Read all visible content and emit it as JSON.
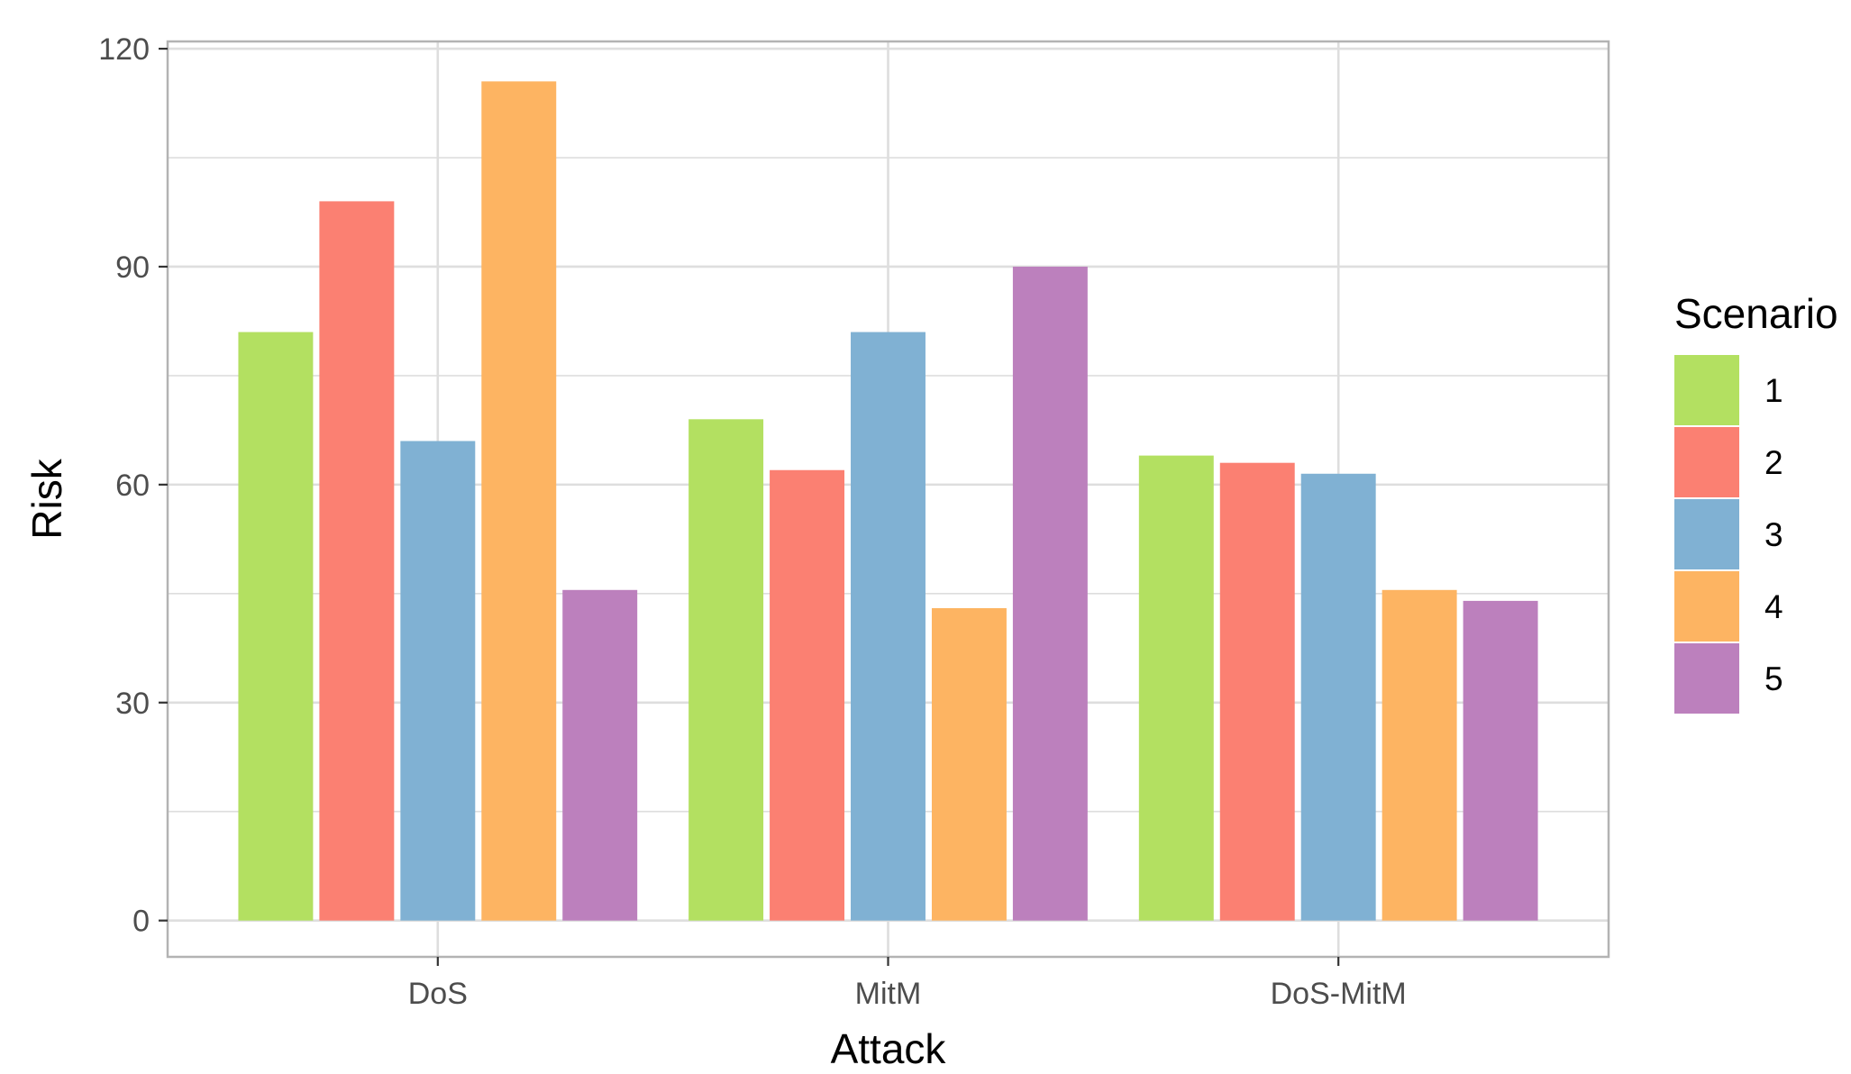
{
  "chart_data": {
    "type": "bar",
    "xlabel": "Attack",
    "ylabel": "Risk",
    "categories": [
      "DoS",
      "MitM",
      "DoS-MitM"
    ],
    "ylim": [
      -5,
      121
    ],
    "yticks": [
      0,
      30,
      60,
      90,
      120
    ],
    "grid": true,
    "legend": {
      "title": "Scenario",
      "placement": "right"
    },
    "series": [
      {
        "name": "1",
        "color": "#B3E061",
        "values": [
          81,
          69,
          64
        ]
      },
      {
        "name": "2",
        "color": "#FB8072",
        "values": [
          99,
          62,
          63
        ]
      },
      {
        "name": "3",
        "color": "#80B1D3",
        "values": [
          66,
          81,
          61.5
        ]
      },
      {
        "name": "4",
        "color": "#FDB462",
        "values": [
          115.5,
          43,
          45.5
        ]
      },
      {
        "name": "5",
        "color": "#BC80BD",
        "values": [
          45.5,
          90,
          44
        ]
      }
    ]
  }
}
